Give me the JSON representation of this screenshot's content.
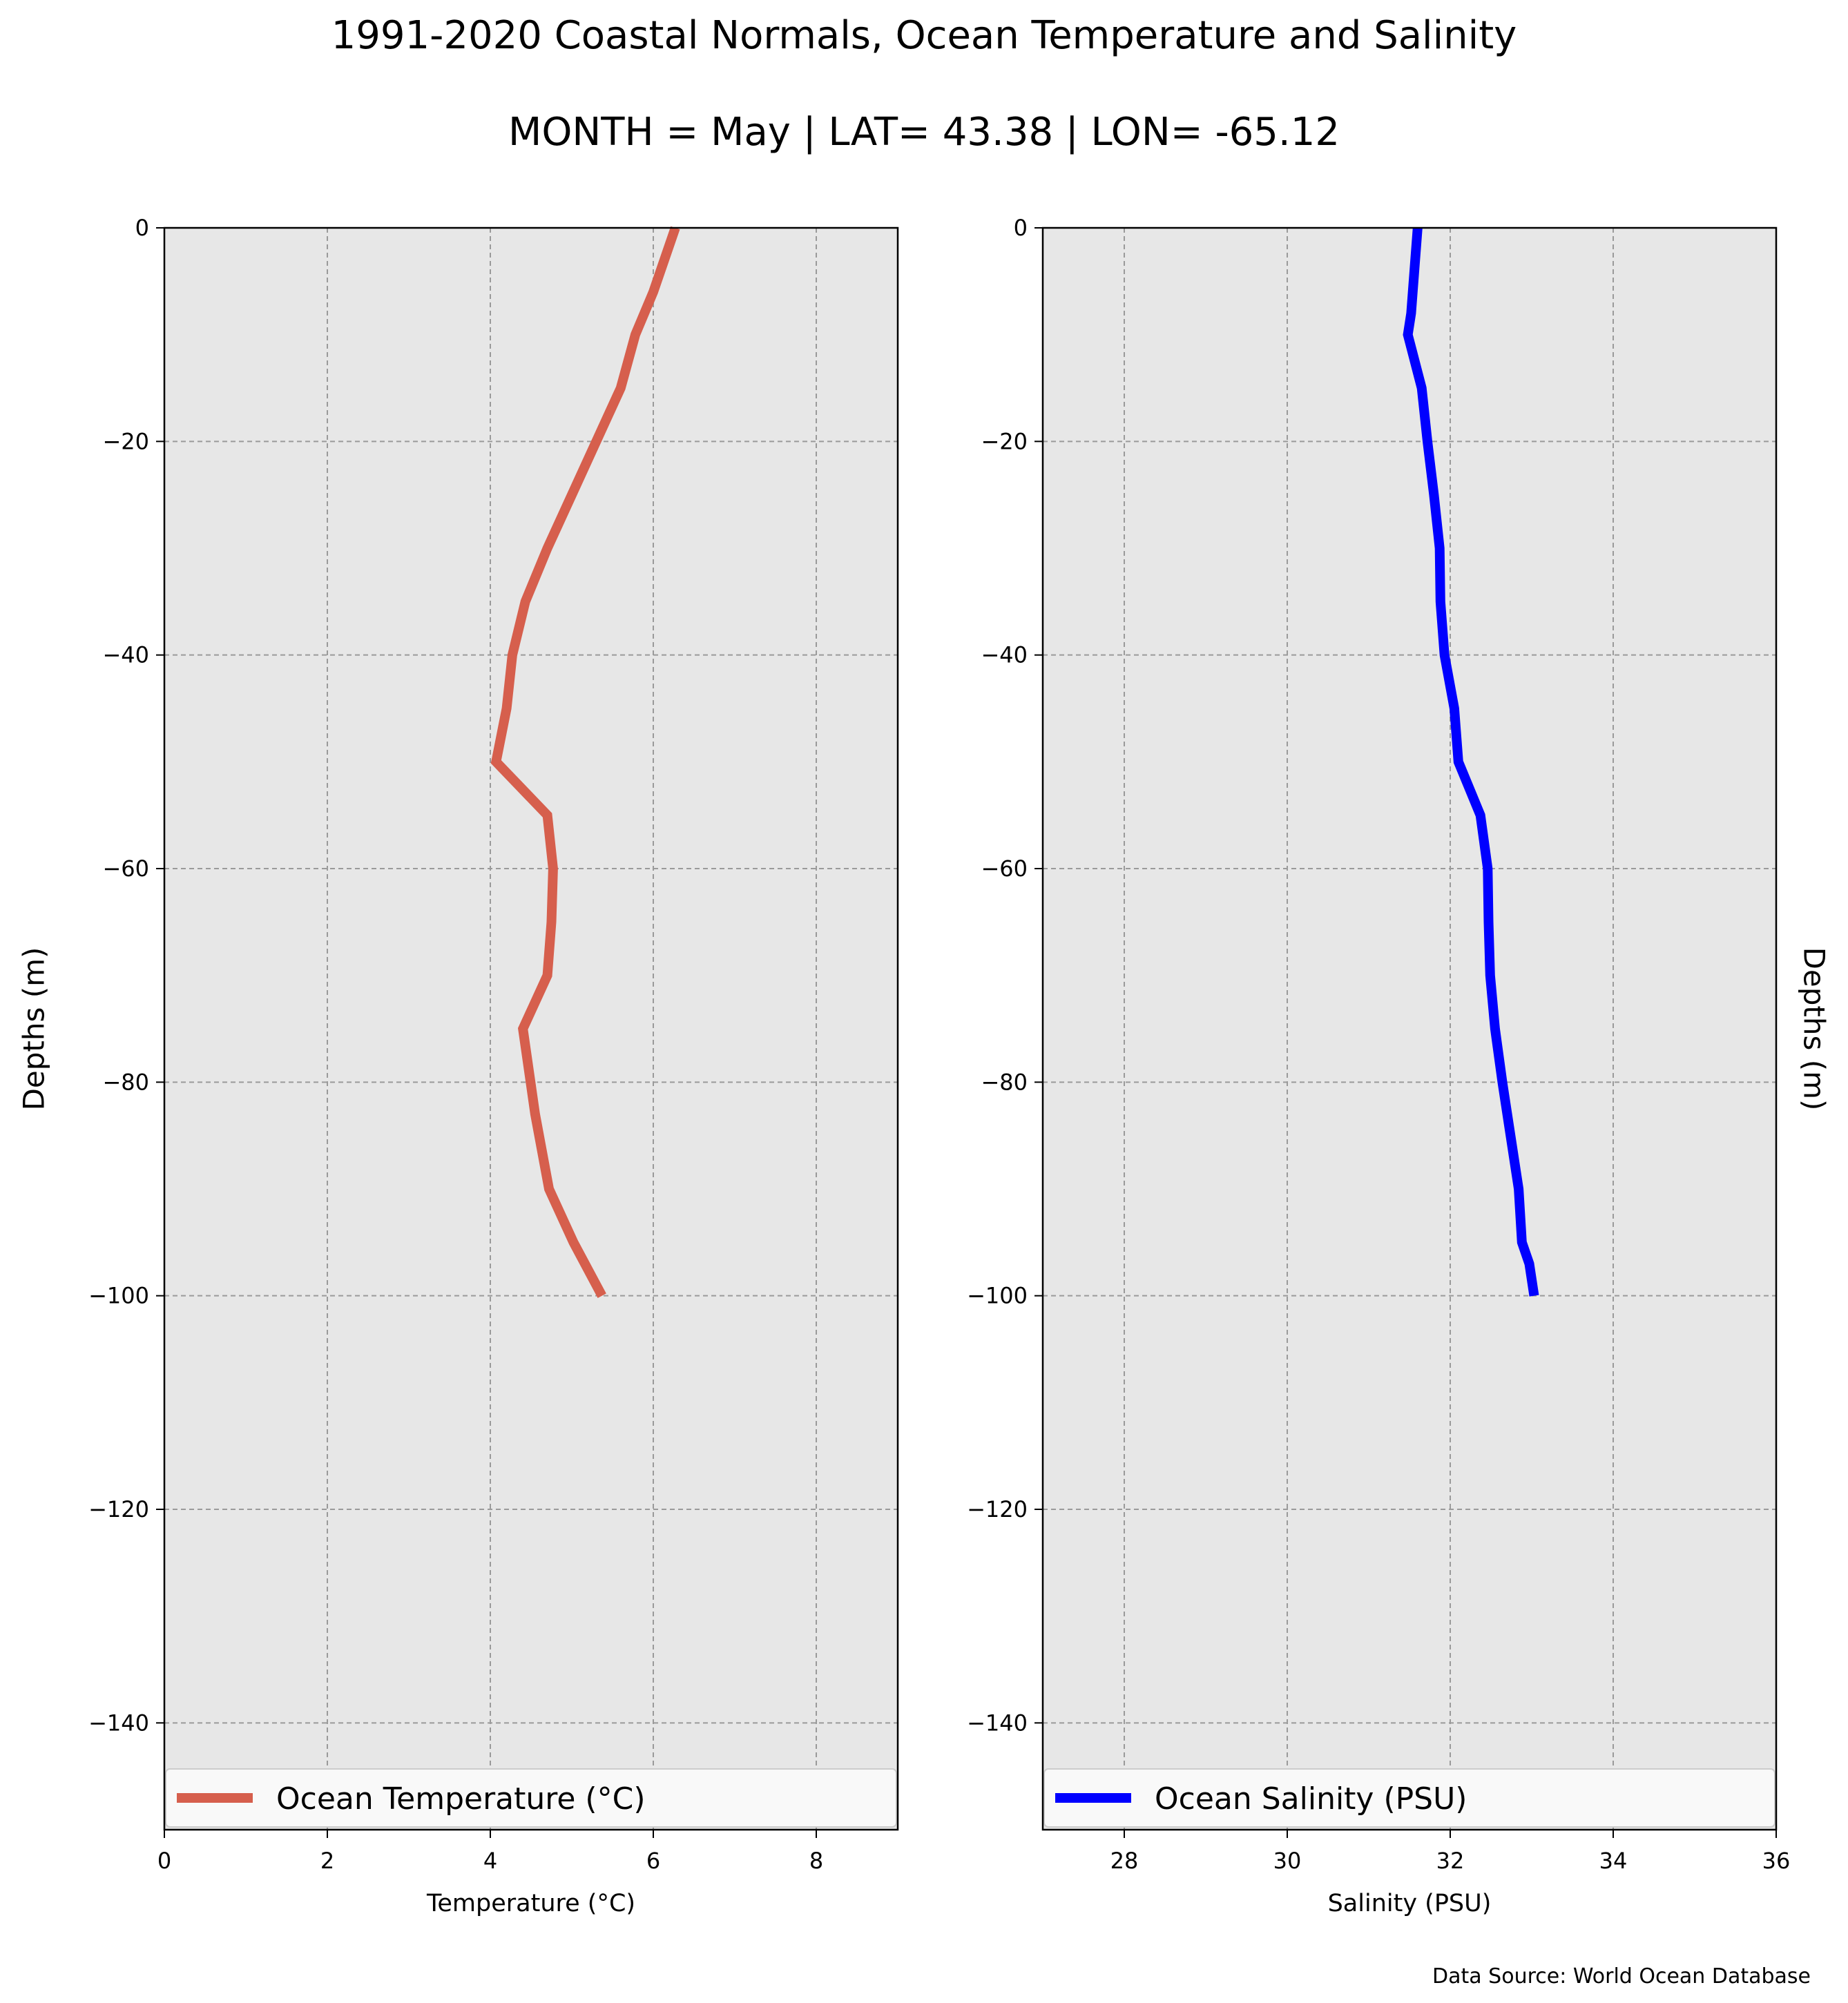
{
  "title": "1991-2020 Coastal Normals, Ocean Temperature and Salinity",
  "subtitle": "MONTH = May | LAT= 43.38 | LON= -65.12",
  "source_note": "Data Source: World Ocean Database",
  "chart_data": [
    {
      "type": "line",
      "xlabel": "Temperature (°C)",
      "ylabel": "Depths (m)",
      "ylabel_side": "left",
      "xlim": [
        0,
        9
      ],
      "ylim": [
        -150,
        0
      ],
      "xticks": [
        0,
        2,
        4,
        6,
        8
      ],
      "xtick_labels": [
        "0",
        "2",
        "4",
        "6",
        "8"
      ],
      "yticks": [
        0,
        -20,
        -40,
        -60,
        -80,
        -100,
        -120,
        -140
      ],
      "ytick_labels": [
        "0",
        "−20",
        "−40",
        "−60",
        "−80",
        "−100",
        "−120",
        "−140"
      ],
      "grid": true,
      "legend_position": "bottom",
      "series": [
        {
          "name": "Ocean Temperature (°C)",
          "color": "#d65f4d",
          "x": [
            6.27,
            6.0,
            5.78,
            5.6,
            5.3,
            5.0,
            4.7,
            4.43,
            4.27,
            4.2,
            4.07,
            4.7,
            4.77,
            4.75,
            4.7,
            4.4,
            4.55,
            4.72,
            5.02,
            5.37
          ],
          "y": [
            0,
            -6,
            -10,
            -15,
            -20,
            -25,
            -30,
            -35,
            -40,
            -45,
            -50,
            -55,
            -60,
            -65,
            -70,
            -75,
            -83,
            -90,
            -95,
            -100
          ]
        }
      ]
    },
    {
      "type": "line",
      "xlabel": "Salinity (PSU)",
      "ylabel": "Depths (m)",
      "ylabel_side": "right",
      "xlim": [
        27,
        36
      ],
      "ylim": [
        -150,
        0
      ],
      "xticks": [
        28,
        30,
        32,
        34,
        36
      ],
      "xtick_labels": [
        "28",
        "30",
        "32",
        "34",
        "36"
      ],
      "yticks": [
        0,
        -20,
        -40,
        -60,
        -80,
        -100,
        -120,
        -140
      ],
      "ytick_labels": [
        "0",
        "−20",
        "−40",
        "−60",
        "−80",
        "−100",
        "−120",
        "−140"
      ],
      "grid": true,
      "legend_position": "bottom",
      "series": [
        {
          "name": "Ocean Salinity (PSU)",
          "color": "#0000ff",
          "x": [
            31.6,
            31.55,
            31.52,
            31.48,
            31.65,
            31.72,
            31.8,
            31.87,
            31.88,
            31.93,
            32.05,
            32.1,
            32.37,
            32.46,
            32.47,
            32.49,
            32.55,
            32.64,
            32.74,
            32.84,
            32.88,
            32.97,
            33.03
          ],
          "y": [
            0,
            -5,
            -8,
            -10,
            -15,
            -20,
            -25,
            -30,
            -35,
            -40,
            -45,
            -50,
            -55,
            -60,
            -65,
            -70,
            -75,
            -80,
            -85,
            -90,
            -95,
            -97,
            -100
          ]
        }
      ]
    }
  ]
}
